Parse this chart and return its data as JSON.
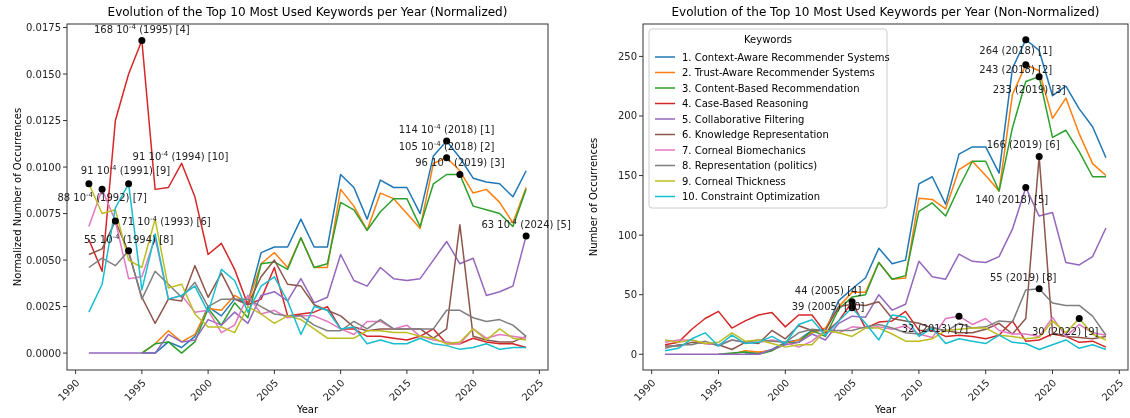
{
  "chart_data": [
    {
      "type": "line",
      "title": "Evolution of the Top 10 Most Used Keywords per Year (Normalized)",
      "xlabel": "Year",
      "ylabel": "Normalized Number of Occurrences",
      "x": [
        1991,
        1992,
        1993,
        1994,
        1995,
        1996,
        1997,
        1998,
        1999,
        2000,
        2001,
        2002,
        2003,
        2004,
        2005,
        2006,
        2007,
        2008,
        2009,
        2010,
        2011,
        2012,
        2013,
        2014,
        2015,
        2016,
        2017,
        2018,
        2019,
        2020,
        2021,
        2022,
        2023,
        2024
      ],
      "xlim": [
        1989.35,
        2025.65
      ],
      "xticks": [
        1990,
        1995,
        2000,
        2005,
        2010,
        2015,
        2020,
        2025
      ],
      "ylim": [
        -0.00091,
        0.01769
      ],
      "yticks": [
        {
          "value": 0,
          "label": "0.0000"
        },
        {
          "value": 0.0025,
          "label": "0.0025"
        },
        {
          "value": 0.005,
          "label": "0.0050"
        },
        {
          "value": 0.0075,
          "label": "0.0075"
        },
        {
          "value": 0.01,
          "label": "0.0100"
        },
        {
          "value": 0.0125,
          "label": "0.0125"
        },
        {
          "value": 0.015,
          "label": "0.0150"
        },
        {
          "value": 0.0175,
          "label": "0.0175"
        }
      ],
      "grid": false,
      "legend": false,
      "marker": "none",
      "line_style": "solid",
      "series": [
        {
          "color": "#1f77b4",
          "values": [
            null,
            null,
            null,
            null,
            0,
            0,
            0.0006,
            0.0003,
            0.0009,
            0.0025,
            0.002,
            0.0029,
            0.0027,
            0.0054,
            0.0057,
            0.0057,
            0.0072,
            0.0057,
            0.0057,
            0.0096,
            0.0089,
            0.0072,
            0.0093,
            0.0089,
            0.0089,
            0.0075,
            0.0106,
            0.0114,
            0.0105,
            0.0094,
            0.0092,
            0.0091,
            0.0084,
            0.0098
          ]
        },
        {
          "color": "#ff7f0e",
          "values": [
            null,
            null,
            null,
            null,
            0,
            0.0005,
            0.0012,
            0.0006,
            0.001,
            0.0024,
            0.0023,
            0.0031,
            0.0027,
            0.0048,
            0.0054,
            0.0046,
            0.0062,
            0.0046,
            0.0046,
            0.0088,
            0.0079,
            0.0066,
            0.0086,
            0.0083,
            0.0075,
            0.0067,
            0.0102,
            0.0105,
            0.0098,
            0.0086,
            0.0088,
            0.0081,
            0.007,
            0.0089
          ]
        },
        {
          "color": "#2ca02c",
          "values": [
            null,
            null,
            null,
            null,
            0,
            0.0005,
            0.0006,
            0,
            0.0006,
            0.0024,
            0.0015,
            0.0027,
            0.0019,
            0.0048,
            0.0049,
            0.0045,
            0.0062,
            0.0046,
            0.0048,
            0.0081,
            0.0077,
            0.0066,
            0.0076,
            0.0083,
            0.0083,
            0.0068,
            0.0091,
            0.0096,
            0.0096,
            0.0079,
            0.0077,
            0.0075,
            0.0068,
            0.0088
          ]
        },
        {
          "color": "#d62728",
          "values": [
            0.0061,
            0.0044,
            0.0125,
            0.015,
            0.0168,
            0.0088,
            0.0089,
            0.0102,
            0.0084,
            0.0053,
            0.0059,
            0.0045,
            0.0026,
            0.0029,
            0.0046,
            0.002,
            0.0021,
            0.0022,
            0.0025,
            0.0013,
            0.0013,
            0.0009,
            0.0009,
            0.0008,
            0.0007,
            0.0009,
            0.0013,
            0.0005,
            0.0005,
            0.0008,
            0.0006,
            0.0005,
            0.0005,
            0.0003
          ]
        },
        {
          "color": "#9467bd",
          "values": [
            0,
            0,
            0,
            0,
            0,
            0,
            0.001,
            0.0006,
            0.0007,
            0.0018,
            0.0015,
            0.0022,
            0.0016,
            0.0031,
            0.0033,
            0.0028,
            0.004,
            0.0027,
            0.003,
            0.0053,
            0.0039,
            0.0036,
            0.0046,
            0.004,
            0.0039,
            0.004,
            0.005,
            0.006,
            0.0048,
            0.0051,
            0.0031,
            0.0033,
            0.0036,
            0.0063
          ]
        },
        {
          "color": "#8c564b",
          "values": [
            0.0053,
            0.0056,
            0.0071,
            0.0054,
            0.003,
            0.0016,
            0.0029,
            0.0028,
            0.0047,
            0.003,
            0.0043,
            0.0029,
            0.0026,
            0.0041,
            0.005,
            0.0037,
            0.0036,
            0.0026,
            0.0023,
            0.002,
            0.0014,
            0.0012,
            0.0013,
            0.0013,
            0.0013,
            0.0013,
            0.0008,
            0.0013,
            0.0069,
            0.0009,
            0.0007,
            0.0006,
            0.0006,
            0.0009
          ]
        },
        {
          "color": "#e377c2",
          "values": [
            0.0068,
            0.0088,
            0.0071,
            0.004,
            0.0041,
            0.0062,
            0.0029,
            0.0031,
            0.0022,
            0.0023,
            0.0011,
            0.0015,
            0.0031,
            0.0021,
            0.0023,
            0.0019,
            0.002,
            0.002,
            0.0017,
            0.0013,
            0.001,
            0.0017,
            0.0017,
            0.0013,
            0.0015,
            0.0009,
            0.0007,
            0.0006,
            0.0005,
            0.0013,
            0.0008,
            0.001,
            0.0009,
            0.0008
          ]
        },
        {
          "color": "#7f7f7f",
          "values": [
            0.0046,
            0.0051,
            0.0047,
            0.0055,
            0.0029,
            0.0044,
            0.0037,
            0.003,
            0.0038,
            0.0025,
            0.0029,
            0.0029,
            0.0029,
            0.0025,
            0.0021,
            0.002,
            0.002,
            0.0015,
            0.0012,
            0.0012,
            0.0017,
            0.0013,
            0.0018,
            0.0013,
            0.0013,
            0.0013,
            0.0013,
            0.0023,
            0.0023,
            0.0019,
            0.0017,
            0.0018,
            0.0015,
            0.0009
          ]
        },
        {
          "color": "#bcbd22",
          "values": [
            0.0091,
            0.0075,
            0.0077,
            0.005,
            0.0046,
            0.0072,
            0.0035,
            0.0037,
            0.0021,
            0.0014,
            0.0014,
            0.0011,
            0.0025,
            0.0021,
            0.0016,
            0.002,
            0.0018,
            0.0013,
            0.0008,
            0.0008,
            0.0008,
            0.0012,
            0.0012,
            0.0011,
            0.0011,
            0.0009,
            0.0008,
            0.0005,
            0.0006,
            0.0013,
            0.0007,
            0.0013,
            0.0008,
            0.0007
          ]
        },
        {
          "color": "#17becf",
          "values": [
            0.0022,
            0.0037,
            0.0078,
            0.0091,
            0.0034,
            0.0064,
            0.0029,
            0.0031,
            0.0036,
            0.0022,
            0.0045,
            0.0039,
            0.0022,
            0.0036,
            0.0041,
            0.0028,
            0.001,
            0.0025,
            0.0023,
            0.0013,
            0.0014,
            0.0005,
            0.0007,
            0.0005,
            0.0005,
            0.0008,
            0.0005,
            0.0004,
            0.0002,
            0.0003,
            0.0005,
            0.0002,
            0.0003,
            0.0003
          ]
        }
      ],
      "annotations": [
        {
          "text": "114 10$^{-4}$ (2018) [1]",
          "x": 2018,
          "y": 0.0114
        },
        {
          "text": "105 10$^{-4}$ (2018) [2]",
          "x": 2018,
          "y": 0.0105
        },
        {
          "text": "96 10$^{-4}$ (2019) [3]",
          "x": 2019,
          "y": 0.0096
        },
        {
          "text": "168 10$^{-4}$ (1995) [4]",
          "x": 1995,
          "y": 0.0168
        },
        {
          "text": "63 10$^{-4}$ (2024) [5]",
          "x": 2024,
          "y": 0.0063
        },
        {
          "text": "71 10$^{-4}$ (1993) [6]",
          "x": 1993,
          "y": 0.0071
        },
        {
          "text": "88 10$^{-4}$ (1992) [7]",
          "x": 1992,
          "y": 0.0088
        },
        {
          "text": "55 10$^{-4}$ (1994) [8]",
          "x": 1994,
          "y": 0.0055
        },
        {
          "text": "91 10$^{-4}$ (1991) [9]",
          "x": 1991,
          "y": 0.0091
        },
        {
          "text": "91 10$^{-4}$ (1994) [10]",
          "x": 1994,
          "y": 0.0091
        }
      ]
    },
    {
      "type": "line",
      "title": "Evolution of the Top 10 Most Used Keywords per Year (Non-Normalized)",
      "xlabel": "Year",
      "ylabel": "Number of Occurrences",
      "legend_title": "Keywords",
      "x": [
        1991,
        1992,
        1993,
        1994,
        1995,
        1996,
        1997,
        1998,
        1999,
        2000,
        2001,
        2002,
        2003,
        2004,
        2005,
        2006,
        2007,
        2008,
        2009,
        2010,
        2011,
        2012,
        2013,
        2014,
        2015,
        2016,
        2017,
        2018,
        2019,
        2020,
        2021,
        2022,
        2023,
        2024
      ],
      "xlim": [
        1989.35,
        2025.65
      ],
      "xticks": [
        1990,
        1995,
        2000,
        2005,
        2010,
        2015,
        2020,
        2025
      ],
      "ylim": [
        -13.2,
        277.2
      ],
      "yticks": [
        0,
        50,
        100,
        150,
        200,
        250
      ],
      "grid": false,
      "legend": "top left",
      "marker": "none",
      "line_style": "solid",
      "series": [
        {
          "name": "1. Context-Aware Recommender Systems",
          "color": "#1f77b4",
          "values": [
            null,
            null,
            null,
            null,
            null,
            null,
            1,
            1,
            4,
            10,
            12,
            20,
            20,
            45,
            55,
            64,
            89,
            76,
            79,
            143,
            149,
            126,
            168,
            174,
            174,
            152,
            240,
            264,
            255,
            217,
            225,
            206,
            191,
            165
          ]
        },
        {
          "name": "2. Trust-Aware Recommender Systems",
          "color": "#ff7f0e",
          "values": [
            null,
            null,
            null,
            null,
            0,
            0,
            3,
            2,
            3,
            9,
            12,
            18,
            22,
            40,
            52,
            52,
            77,
            63,
            64,
            131,
            130,
            122,
            155,
            162,
            150,
            137,
            218,
            243,
            238,
            198,
            215,
            185,
            160,
            150
          ]
        },
        {
          "name": "3. Content-Based Recommendation",
          "color": "#2ca02c",
          "values": [
            null,
            null,
            null,
            null,
            0,
            1,
            2,
            0,
            3,
            9,
            10,
            20,
            15,
            38,
            48,
            50,
            77,
            63,
            66,
            120,
            127,
            116,
            140,
            162,
            162,
            137,
            190,
            229,
            233,
            182,
            188,
            170,
            149,
            149
          ]
        },
        {
          "name": "4. Case-Based Reasoning",
          "color": "#d62728",
          "values": [
            8,
            10,
            21,
            30,
            36,
            22,
            28,
            33,
            35,
            23,
            33,
            33,
            18,
            28,
            44,
            22,
            27,
            28,
            36,
            20,
            20,
            15,
            16,
            15,
            13,
            16,
            28,
            11,
            12,
            17,
            15,
            10,
            11,
            6
          ]
        },
        {
          "name": "5. Collaborative Filtering",
          "color": "#9467bd",
          "values": [
            0,
            0,
            0,
            0,
            0,
            0,
            0,
            0,
            4,
            8,
            10,
            17,
            12,
            26,
            32,
            31,
            50,
            37,
            42,
            78,
            65,
            63,
            84,
            78,
            77,
            82,
            105,
            140,
            116,
            119,
            77,
            75,
            82,
            106
          ]
        },
        {
          "name": "6. Knowledge Representation",
          "color": "#8c564b",
          "values": [
            7,
            7,
            10,
            9,
            8,
            4,
            10,
            9,
            20,
            13,
            24,
            20,
            20,
            40,
            42,
            41,
            44,
            30,
            28,
            26,
            22,
            20,
            18,
            18,
            21,
            26,
            17,
            30,
            166,
            18,
            15,
            14,
            13,
            15
          ]
        },
        {
          "name": "7. Corneal Biomechanics",
          "color": "#e377c2",
          "values": [
            10,
            12,
            12,
            9,
            8,
            12,
            10,
            10,
            12,
            10,
            6,
            11,
            20,
            18,
            23,
            22,
            23,
            21,
            24,
            17,
            14,
            30,
            32,
            25,
            30,
            20,
            17,
            17,
            15,
            31,
            15,
            25,
            18,
            16
          ]
        },
        {
          "name": "8. Representation (politics)",
          "color": "#7f7f7f",
          "values": [
            5,
            8,
            8,
            11,
            7,
            12,
            10,
            12,
            11,
            10,
            18,
            21,
            20,
            20,
            20,
            23,
            25,
            22,
            18,
            17,
            23,
            19,
            26,
            22,
            23,
            28,
            27,
            54,
            55,
            43,
            41,
            41,
            32,
            16
          ]
        },
        {
          "name": "9. Corneal Thickness",
          "color": "#bcbd22",
          "values": [
            12,
            10,
            12,
            9,
            10,
            18,
            11,
            12,
            9,
            6,
            8,
            8,
            20,
            18,
            15,
            22,
            22,
            17,
            11,
            11,
            13,
            20,
            21,
            22,
            22,
            16,
            15,
            13,
            14,
            28,
            18,
            30,
            17,
            12
          ]
        },
        {
          "name": "10. Constraint Optimization",
          "color": "#17becf",
          "values": [
            3,
            5,
            13,
            18,
            7,
            16,
            9,
            10,
            15,
            9,
            25,
            29,
            16,
            28,
            39,
            26,
            12,
            33,
            31,
            15,
            22,
            9,
            13,
            11,
            9,
            16,
            10,
            9,
            4,
            8,
            12,
            5,
            8,
            4
          ]
        }
      ],
      "annotations": [
        {
          "text": "264 (2018) [1]",
          "x": 2018,
          "y": 264
        },
        {
          "text": "243 (2018) [2]",
          "x": 2018,
          "y": 243
        },
        {
          "text": "233 (2019) [3]",
          "x": 2019,
          "y": 233
        },
        {
          "text": "44 (2005) [4]",
          "x": 2005,
          "y": 44
        },
        {
          "text": "140 (2018) [5]",
          "x": 2018,
          "y": 140
        },
        {
          "text": "166 (2019) [6]",
          "x": 2019,
          "y": 166
        },
        {
          "text": "32 (2013) [7]",
          "x": 2013,
          "y": 32
        },
        {
          "text": "55 (2019) [8]",
          "x": 2019,
          "y": 55
        },
        {
          "text": "30 (2022) [9]",
          "x": 2022,
          "y": 30
        },
        {
          "text": "39 (2005) [10]",
          "x": 2005,
          "y": 39
        }
      ]
    }
  ]
}
